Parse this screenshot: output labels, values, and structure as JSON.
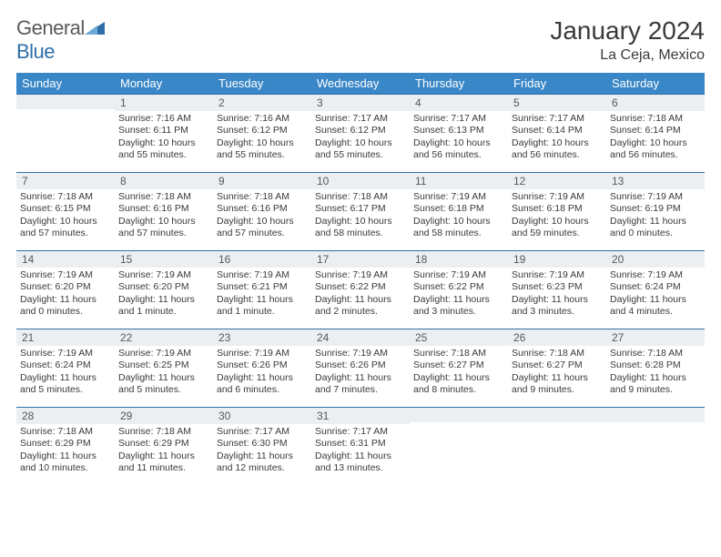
{
  "brand": {
    "word1": "General",
    "word2": "Blue"
  },
  "title": "January 2024",
  "location": "La Ceja, Mexico",
  "colors": {
    "header_bg": "#3a87c7",
    "header_text": "#ffffff",
    "daynum_bg": "#eceff1",
    "daynum_border": "#2f6fa8",
    "text": "#3a3a3a",
    "logo_gray": "#5a5a5a",
    "logo_blue": "#2f6fa8"
  },
  "weekdays": [
    "Sunday",
    "Monday",
    "Tuesday",
    "Wednesday",
    "Thursday",
    "Friday",
    "Saturday"
  ],
  "start_offset": 1,
  "days": [
    {
      "n": 1,
      "sunrise": "7:16 AM",
      "sunset": "6:11 PM",
      "daylight": "10 hours and 55 minutes."
    },
    {
      "n": 2,
      "sunrise": "7:16 AM",
      "sunset": "6:12 PM",
      "daylight": "10 hours and 55 minutes."
    },
    {
      "n": 3,
      "sunrise": "7:17 AM",
      "sunset": "6:12 PM",
      "daylight": "10 hours and 55 minutes."
    },
    {
      "n": 4,
      "sunrise": "7:17 AM",
      "sunset": "6:13 PM",
      "daylight": "10 hours and 56 minutes."
    },
    {
      "n": 5,
      "sunrise": "7:17 AM",
      "sunset": "6:14 PM",
      "daylight": "10 hours and 56 minutes."
    },
    {
      "n": 6,
      "sunrise": "7:18 AM",
      "sunset": "6:14 PM",
      "daylight": "10 hours and 56 minutes."
    },
    {
      "n": 7,
      "sunrise": "7:18 AM",
      "sunset": "6:15 PM",
      "daylight": "10 hours and 57 minutes."
    },
    {
      "n": 8,
      "sunrise": "7:18 AM",
      "sunset": "6:16 PM",
      "daylight": "10 hours and 57 minutes."
    },
    {
      "n": 9,
      "sunrise": "7:18 AM",
      "sunset": "6:16 PM",
      "daylight": "10 hours and 57 minutes."
    },
    {
      "n": 10,
      "sunrise": "7:18 AM",
      "sunset": "6:17 PM",
      "daylight": "10 hours and 58 minutes."
    },
    {
      "n": 11,
      "sunrise": "7:19 AM",
      "sunset": "6:18 PM",
      "daylight": "10 hours and 58 minutes."
    },
    {
      "n": 12,
      "sunrise": "7:19 AM",
      "sunset": "6:18 PM",
      "daylight": "10 hours and 59 minutes."
    },
    {
      "n": 13,
      "sunrise": "7:19 AM",
      "sunset": "6:19 PM",
      "daylight": "11 hours and 0 minutes."
    },
    {
      "n": 14,
      "sunrise": "7:19 AM",
      "sunset": "6:20 PM",
      "daylight": "11 hours and 0 minutes."
    },
    {
      "n": 15,
      "sunrise": "7:19 AM",
      "sunset": "6:20 PM",
      "daylight": "11 hours and 1 minute."
    },
    {
      "n": 16,
      "sunrise": "7:19 AM",
      "sunset": "6:21 PM",
      "daylight": "11 hours and 1 minute."
    },
    {
      "n": 17,
      "sunrise": "7:19 AM",
      "sunset": "6:22 PM",
      "daylight": "11 hours and 2 minutes."
    },
    {
      "n": 18,
      "sunrise": "7:19 AM",
      "sunset": "6:22 PM",
      "daylight": "11 hours and 3 minutes."
    },
    {
      "n": 19,
      "sunrise": "7:19 AM",
      "sunset": "6:23 PM",
      "daylight": "11 hours and 3 minutes."
    },
    {
      "n": 20,
      "sunrise": "7:19 AM",
      "sunset": "6:24 PM",
      "daylight": "11 hours and 4 minutes."
    },
    {
      "n": 21,
      "sunrise": "7:19 AM",
      "sunset": "6:24 PM",
      "daylight": "11 hours and 5 minutes."
    },
    {
      "n": 22,
      "sunrise": "7:19 AM",
      "sunset": "6:25 PM",
      "daylight": "11 hours and 5 minutes."
    },
    {
      "n": 23,
      "sunrise": "7:19 AM",
      "sunset": "6:26 PM",
      "daylight": "11 hours and 6 minutes."
    },
    {
      "n": 24,
      "sunrise": "7:19 AM",
      "sunset": "6:26 PM",
      "daylight": "11 hours and 7 minutes."
    },
    {
      "n": 25,
      "sunrise": "7:18 AM",
      "sunset": "6:27 PM",
      "daylight": "11 hours and 8 minutes."
    },
    {
      "n": 26,
      "sunrise": "7:18 AM",
      "sunset": "6:27 PM",
      "daylight": "11 hours and 9 minutes."
    },
    {
      "n": 27,
      "sunrise": "7:18 AM",
      "sunset": "6:28 PM",
      "daylight": "11 hours and 9 minutes."
    },
    {
      "n": 28,
      "sunrise": "7:18 AM",
      "sunset": "6:29 PM",
      "daylight": "11 hours and 10 minutes."
    },
    {
      "n": 29,
      "sunrise": "7:18 AM",
      "sunset": "6:29 PM",
      "daylight": "11 hours and 11 minutes."
    },
    {
      "n": 30,
      "sunrise": "7:17 AM",
      "sunset": "6:30 PM",
      "daylight": "11 hours and 12 minutes."
    },
    {
      "n": 31,
      "sunrise": "7:17 AM",
      "sunset": "6:31 PM",
      "daylight": "11 hours and 13 minutes."
    }
  ],
  "labels": {
    "sunrise": "Sunrise:",
    "sunset": "Sunset:",
    "daylight": "Daylight:"
  }
}
